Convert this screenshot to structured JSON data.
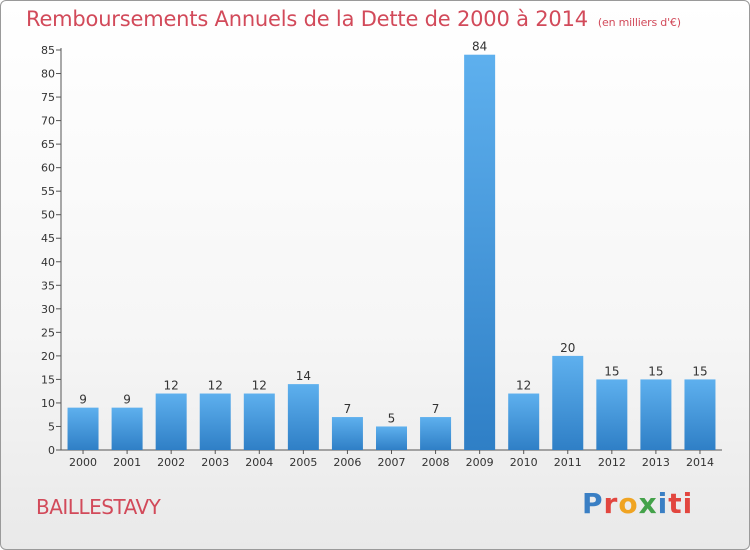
{
  "header": {
    "title": "Remboursements Annuels de la Dette de 2000 à 2014",
    "unit": "(en milliers d'€)"
  },
  "footer": {
    "place": "BAILLESTAVY",
    "logo": [
      "P",
      "r",
      "o",
      "x",
      "i",
      "ti"
    ]
  },
  "chart_data": {
    "type": "bar",
    "title": "Remboursements Annuels de la Dette de 2000 à 2014",
    "subtitle": "(en milliers d'€)",
    "categories": [
      "2000",
      "2001",
      "2002",
      "2003",
      "2004",
      "2005",
      "2006",
      "2007",
      "2008",
      "2009",
      "2010",
      "2011",
      "2012",
      "2013",
      "2014"
    ],
    "values": [
      9,
      9,
      12,
      12,
      12,
      14,
      7,
      5,
      7,
      84,
      12,
      20,
      15,
      15,
      15
    ],
    "ylim": [
      0,
      85
    ],
    "yticks": [
      0,
      5,
      10,
      15,
      20,
      25,
      30,
      35,
      40,
      45,
      50,
      55,
      60,
      65,
      70,
      75,
      80,
      85
    ],
    "grid": false,
    "bar_color": "#4a9be0"
  }
}
